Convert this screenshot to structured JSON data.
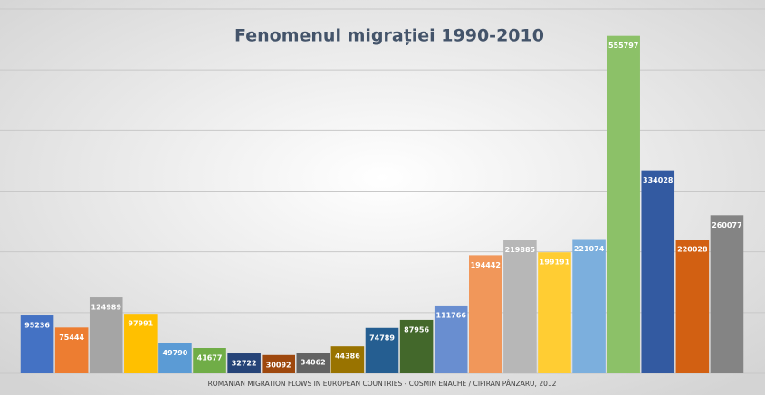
{
  "chart_data": {
    "type": "bar",
    "title": "Fenomenul migrației 1990-2010",
    "caption": "ROMANIAN MIGRATION FLOWS IN EUROPEAN COUNTRIES - COSMIN ENACHE / CIPIRAN PÂNZARU, 2012",
    "categories": [
      null,
      null,
      null,
      null,
      null,
      null,
      null,
      null,
      null,
      null,
      null,
      null,
      null,
      null,
      null,
      null,
      null,
      null,
      null,
      null,
      null
    ],
    "values": [
      95236,
      75444,
      124989,
      97991,
      49790,
      41677,
      32722,
      30092,
      34062,
      44386,
      74789,
      87956,
      111766,
      194442,
      219885,
      199191,
      221074,
      555797,
      334028,
      220028,
      260077
    ],
    "colors": [
      "#4472c4",
      "#ed7d31",
      "#a5a5a5",
      "#ffc000",
      "#5b9bd5",
      "#70ad47",
      "#264478",
      "#9e480e",
      "#636363",
      "#997300",
      "#255e91",
      "#43682b",
      "#698ed0",
      "#f1975a",
      "#b7b7b7",
      "#ffcd33",
      "#7cafdd",
      "#8cc168",
      "#335aa1",
      "#d26012",
      "#848484"
    ],
    "ylim": [
      0,
      600000
    ],
    "yticks": [
      0,
      100000,
      200000,
      300000,
      400000,
      500000,
      600000
    ],
    "grid": true
  }
}
